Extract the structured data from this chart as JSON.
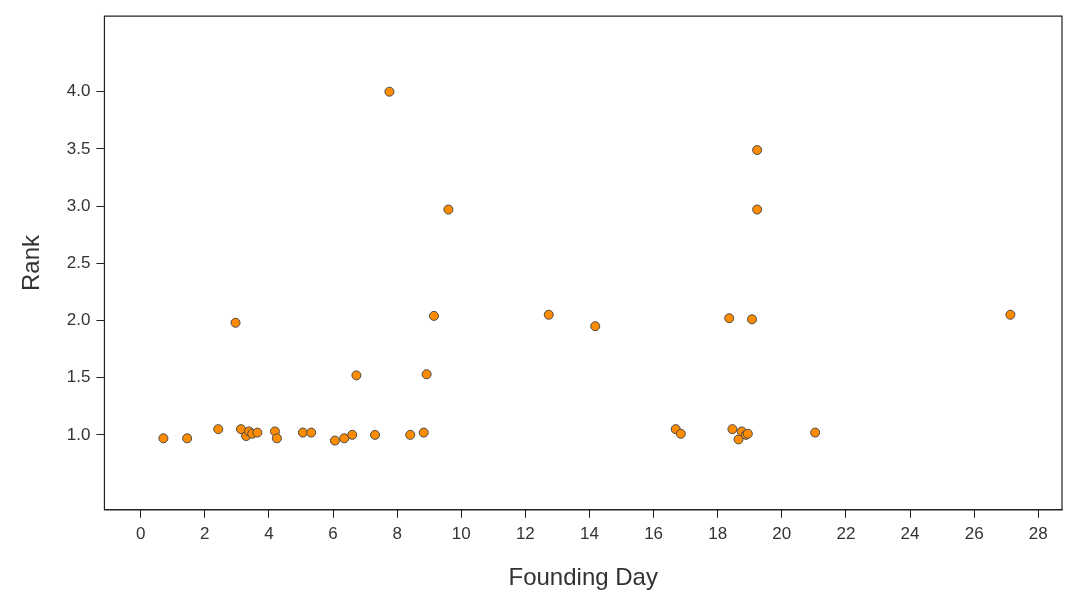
{
  "chart_data": {
    "type": "scatter",
    "xlabel": "Founding Day",
    "ylabel": "Rank",
    "marker": "circle",
    "xlim": [
      -1.13,
      28.74
    ],
    "ylim": [
      0.345,
      4.66
    ],
    "xticks": [
      0,
      2,
      4,
      6,
      8,
      10,
      12,
      14,
      16,
      18,
      20,
      22,
      24,
      26,
      28
    ],
    "yticks": [
      {
        "value": 1,
        "label": "1.0"
      },
      {
        "value": 1.5,
        "label": "1.5"
      },
      {
        "value": 2,
        "label": "2.0"
      },
      {
        "value": 2.5,
        "label": "2.5"
      },
      {
        "value": 3,
        "label": "3.0"
      },
      {
        "value": 3.5,
        "label": "3.5"
      },
      {
        "value": 4,
        "label": "4.0"
      }
    ],
    "series": [
      {
        "color": "#ff8c00",
        "x": [
          0.71,
          1.45,
          2.42,
          2.96,
          3.13,
          3.29,
          3.38,
          3.48,
          3.64,
          4.19,
          4.25,
          5.06,
          5.32,
          6.06,
          6.35,
          6.6,
          6.73,
          7.31,
          7.76,
          8.41,
          8.83,
          8.92,
          9.15,
          9.6,
          12.73,
          14.18,
          16.69,
          16.85,
          18.36,
          18.46,
          18.65,
          18.75,
          18.88,
          18.94,
          19.07,
          19.23,
          19.23,
          21.04,
          27.13
        ],
        "values": [
          0.97,
          0.97,
          1.05,
          1.98,
          1.05,
          0.99,
          1.03,
          1.01,
          1.02,
          1.03,
          0.97,
          1.02,
          1.02,
          0.95,
          0.97,
          1.0,
          1.52,
          1.0,
          4.0,
          1.0,
          1.02,
          1.53,
          2.04,
          2.97,
          2.05,
          1.95,
          1.05,
          1.01,
          2.02,
          1.05,
          0.96,
          1.03,
          1.0,
          1.01,
          2.01,
          3.49,
          2.97,
          1.02,
          2.05
        ]
      }
    ]
  }
}
